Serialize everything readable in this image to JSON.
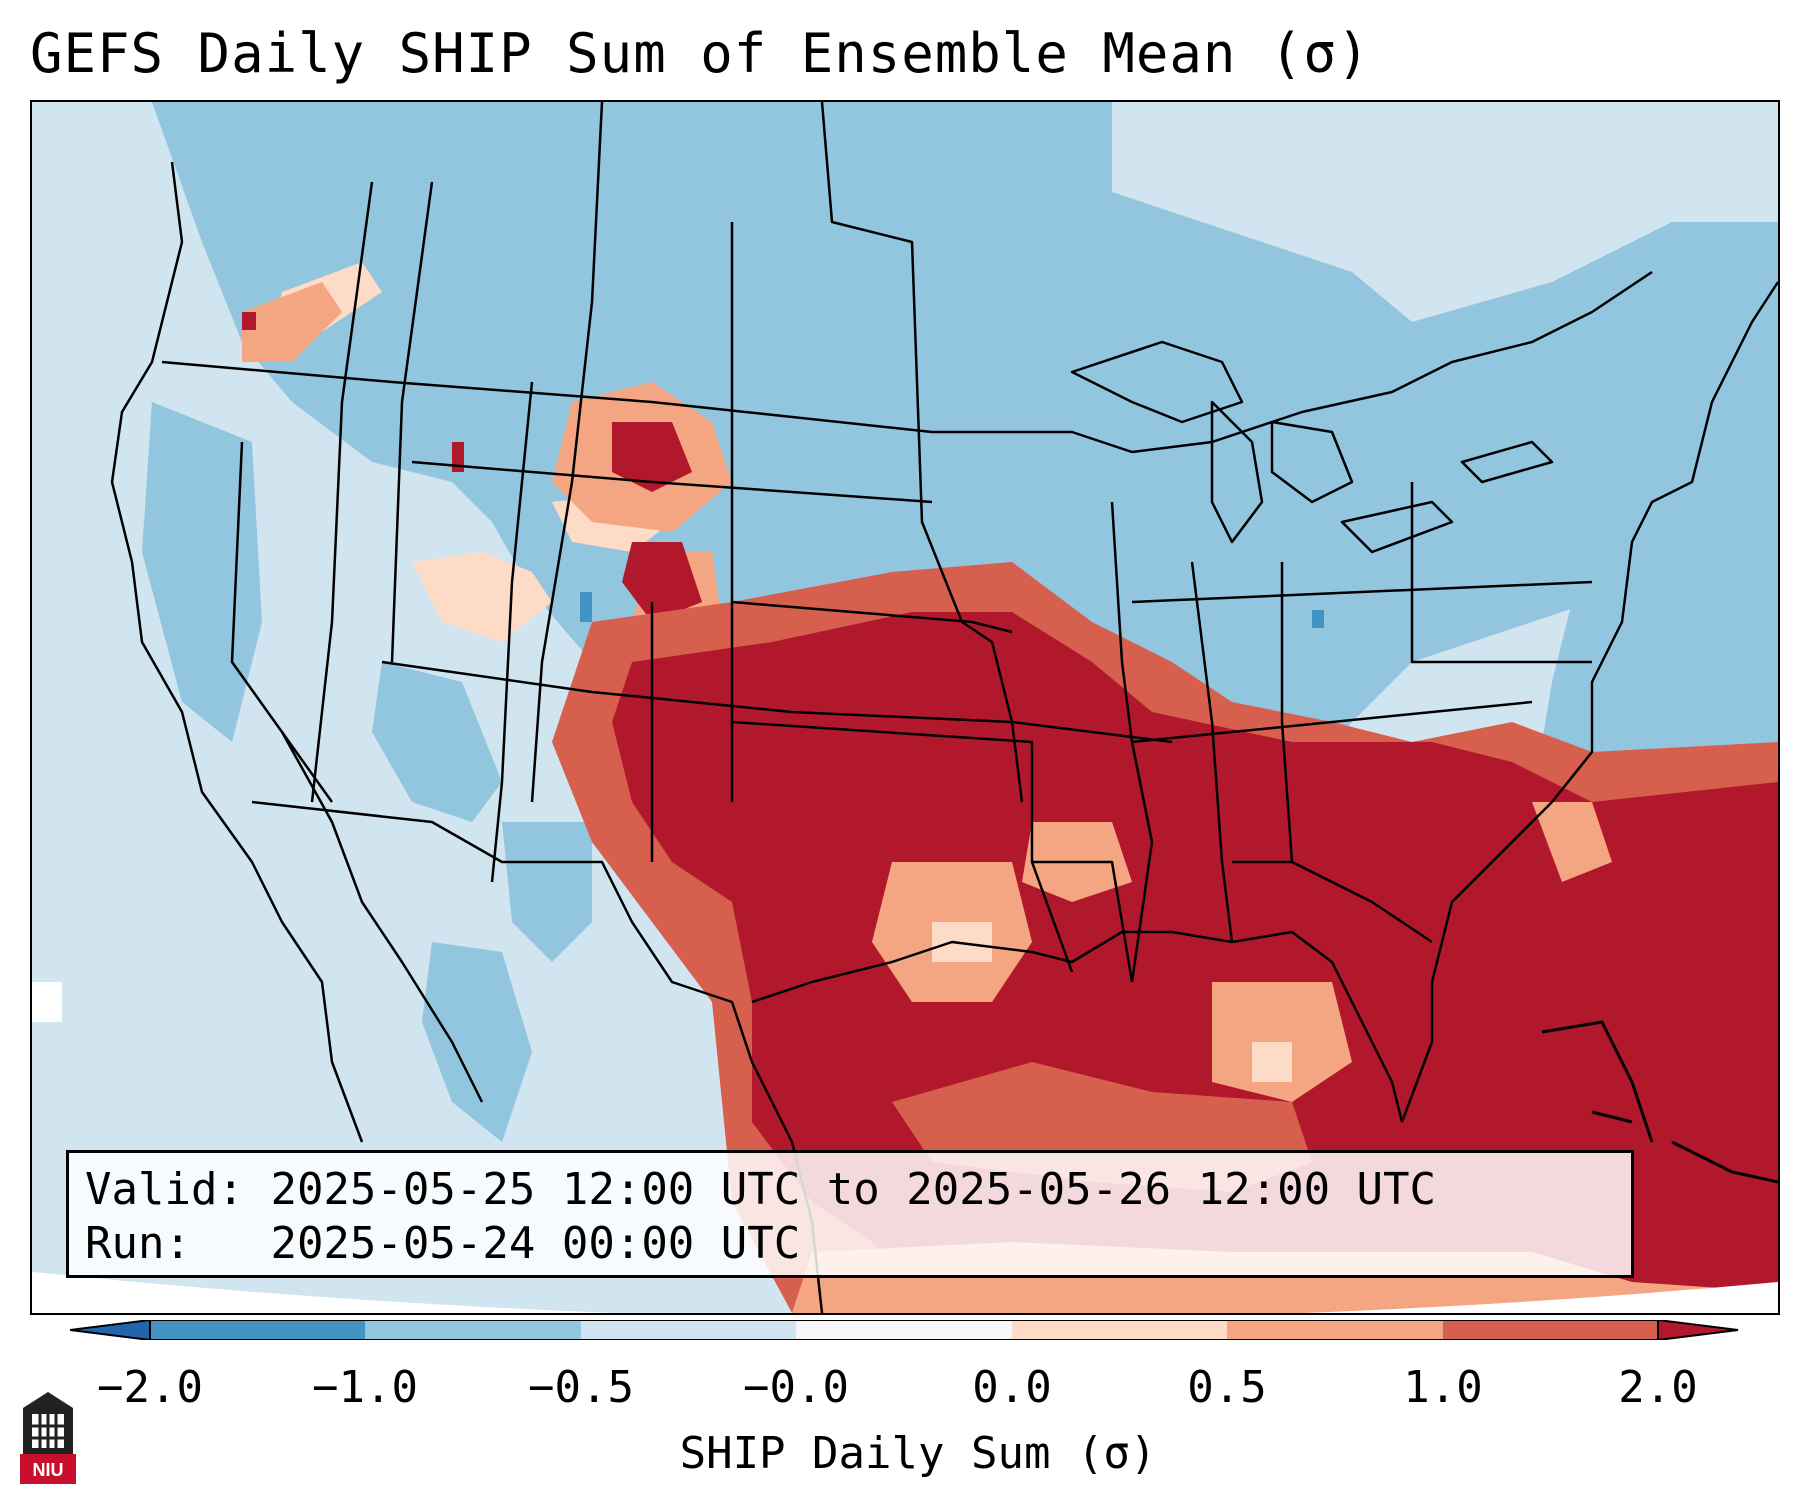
{
  "title": "GEFS Daily SHIP Sum of Ensemble Mean (σ)",
  "info": {
    "valid_label": "Valid:",
    "valid_value": "2025-05-25 12:00 UTC to 2025-05-26 12:00 UTC",
    "run_label": "Run:",
    "run_value": "2025-05-24 00:00 UTC"
  },
  "colorbar": {
    "label": "SHIP Daily Sum (σ)",
    "ticks": [
      "−2.0",
      "−1.0",
      "−0.5",
      "−0.0",
      "0.0",
      "0.5",
      "1.0",
      "2.0"
    ],
    "colors": [
      "#4393c3",
      "#92c5de",
      "#d1e5f0",
      "#f7f7f7",
      "#fddbc7",
      "#f4a582",
      "#d6604d",
      "#b2182b"
    ]
  },
  "logo": {
    "text": "NIU",
    "icon": "university-tower-icon"
  },
  "map": {
    "projection": "Lambert conformal, CONUS",
    "field": "GEFS SHIP daily sum (sigma)"
  }
}
